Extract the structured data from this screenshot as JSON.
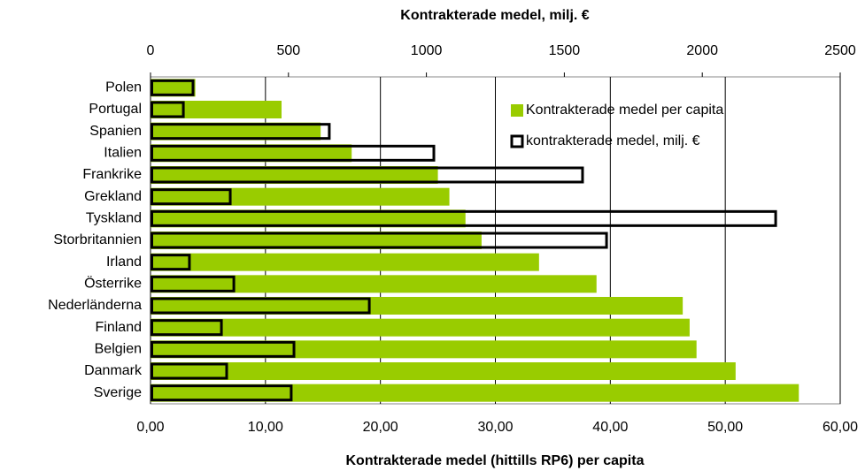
{
  "chart_data": {
    "type": "bar",
    "orientation": "horizontal",
    "x_label": "Kontrakterade medel (hittills RP6) per capita",
    "x2_label": "Kontrakterade medel, milj. €",
    "categories": [
      "Polen",
      "Portugal",
      "Spanien",
      "Italien",
      "Frankrike",
      "Grekland",
      "Tyskland",
      "Storbritannien",
      "Irland",
      "Österrike",
      "Nederländerna",
      "Finland",
      "Belgien",
      "Danmark",
      "Sverige"
    ],
    "series": [
      {
        "name": "Kontrakterade medel per capita",
        "color": "#99cc00",
        "axis": "x",
        "values": [
          3.9,
          11.4,
          14.8,
          17.5,
          25.0,
          26.0,
          27.4,
          28.8,
          33.8,
          38.8,
          46.3,
          46.9,
          47.5,
          50.9,
          56.4
        ]
      },
      {
        "name": "kontrakterade medel, milj. €",
        "color": "#000000",
        "axis": "x2",
        "values": [
          154,
          119,
          648,
          1027,
          1566,
          289,
          2266,
          1653,
          141,
          302,
          793,
          257,
          520,
          276,
          510
        ]
      }
    ],
    "xlim": [
      0,
      60
    ],
    "xticks": [
      {
        "value": 0,
        "label": "0,00"
      },
      {
        "value": 10,
        "label": "10,00"
      },
      {
        "value": 20,
        "label": "20,00"
      },
      {
        "value": 30,
        "label": "30,00"
      },
      {
        "value": 40,
        "label": "40,00"
      },
      {
        "value": 50,
        "label": "50,00"
      },
      {
        "value": 60,
        "label": "60,00"
      }
    ],
    "x2lim": [
      0,
      2500
    ],
    "x2ticks": [
      0,
      500,
      1000,
      1500,
      2000,
      2500
    ],
    "grid": true
  }
}
